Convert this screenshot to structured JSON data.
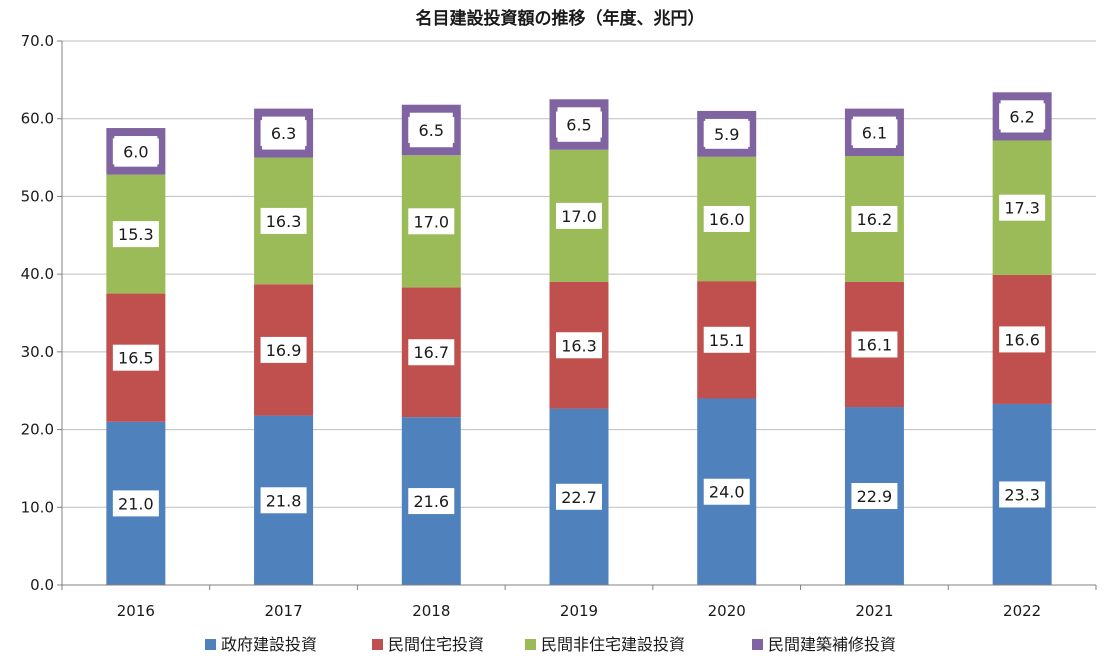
{
  "chart_data": {
    "type": "bar",
    "stacked": true,
    "title": "名目建設投資額の推移（年度、兆円）",
    "categories": [
      "2016",
      "2017",
      "2018",
      "2019",
      "2020",
      "2021",
      "2022"
    ],
    "ylim": [
      0,
      70
    ],
    "yticks": [
      "0.0",
      "10.0",
      "20.0",
      "30.0",
      "40.0",
      "50.0",
      "60.0",
      "70.0"
    ],
    "grid": true,
    "legend_position": "bottom",
    "series": [
      {
        "name": "政府建設投資",
        "color": "#4f81bd",
        "values": [
          21.0,
          21.8,
          21.6,
          22.7,
          24.0,
          22.9,
          23.3
        ]
      },
      {
        "name": "民間住宅投資",
        "color": "#c0504d",
        "values": [
          16.5,
          16.9,
          16.7,
          16.3,
          15.1,
          16.1,
          16.6
        ]
      },
      {
        "name": "民間非住宅建設投資",
        "color": "#9bbb59",
        "values": [
          15.3,
          16.3,
          17.0,
          17.0,
          16.0,
          16.2,
          17.3
        ]
      },
      {
        "name": "民間建築補修投資",
        "color": "#8064a2",
        "values": [
          6.0,
          6.3,
          6.5,
          6.5,
          5.9,
          6.1,
          6.2
        ]
      }
    ]
  }
}
